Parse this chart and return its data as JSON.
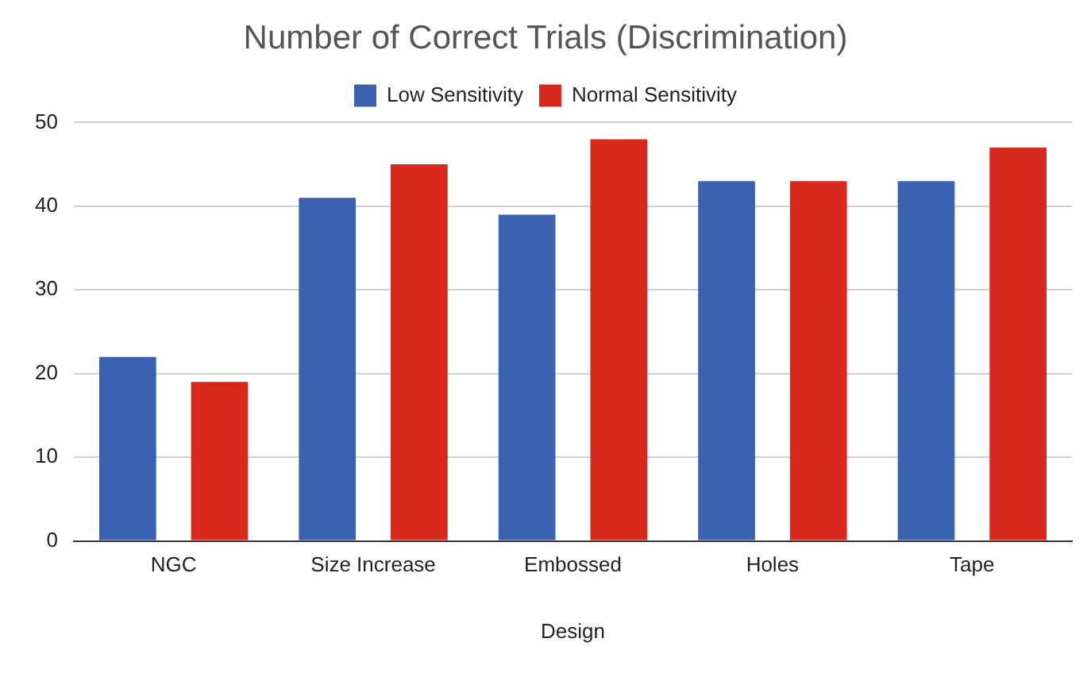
{
  "chart_data": {
    "type": "bar",
    "title": "Number of Correct Trials (Discrimination)",
    "xlabel": "Design",
    "categories": [
      "NGC",
      "Size Increase",
      "Embossed",
      "Holes",
      "Tape"
    ],
    "series": [
      {
        "name": "Low Sensitivity",
        "color": "#3b62b0",
        "values": [
          22,
          41,
          39,
          43,
          43
        ]
      },
      {
        "name": "Normal Sensitivity",
        "color": "#d9291e",
        "values": [
          19,
          45,
          48,
          43,
          47
        ]
      }
    ],
    "ylim": [
      0,
      50
    ],
    "yticks": [
      0,
      10,
      20,
      30,
      40,
      50
    ],
    "grid": "y",
    "legend": "top"
  }
}
